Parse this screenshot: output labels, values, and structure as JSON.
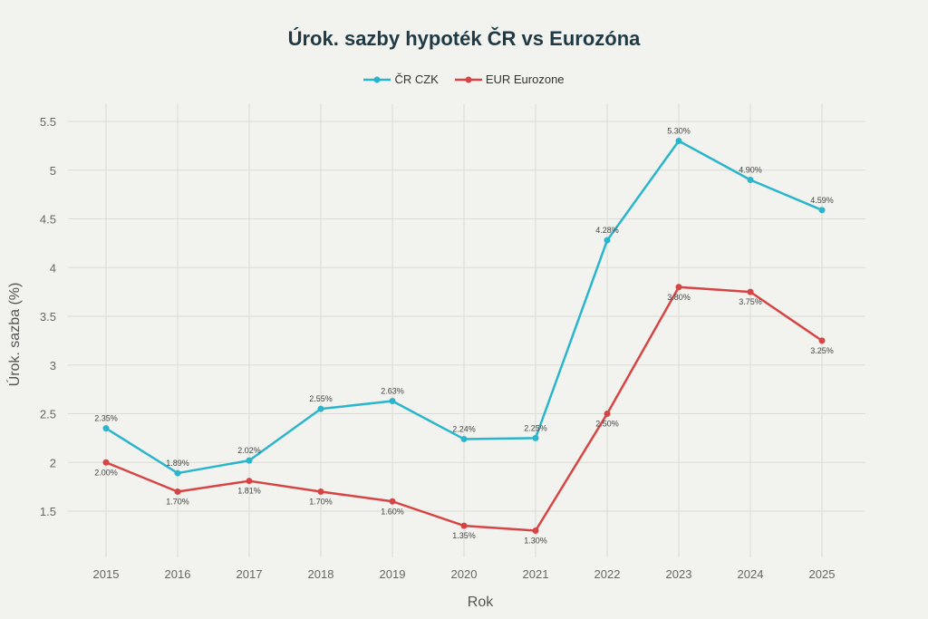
{
  "chart_data": {
    "type": "line",
    "title": "Úrok. sazby hypoték ČR vs Eurozóna",
    "xlabel": "Rok",
    "ylabel": "Úrok. sazba (%)",
    "x": [
      2015,
      2016,
      2017,
      2018,
      2019,
      2020,
      2021,
      2022,
      2023,
      2024,
      2025
    ],
    "x_tick_labels": [
      "2015",
      "2016",
      "2017",
      "2018",
      "2019",
      "2020",
      "2021",
      "2022",
      "2023",
      "2024",
      "2025"
    ],
    "y_ticks": [
      1.5,
      2,
      2.5,
      3,
      3.5,
      4,
      4.5,
      5,
      5.5
    ],
    "y_tick_labels": [
      "1.5",
      "2",
      "2.5",
      "3",
      "3.5",
      "4",
      "4.5",
      "5",
      "5.5"
    ],
    "ylim": [
      1.05,
      5.65
    ],
    "grid": true,
    "legend_position": "top-center",
    "series": [
      {
        "name": "ČR CZK",
        "color": "#2ab5cc",
        "values": [
          2.35,
          1.89,
          2.02,
          2.55,
          2.63,
          2.24,
          2.25,
          4.28,
          5.3,
          4.9,
          4.59
        ],
        "labels": [
          "2.35%",
          "1.89%",
          "2.02%",
          "2.55%",
          "2.63%",
          "2.24%",
          "2.25%",
          "4.28%",
          "5.30%",
          "4.90%",
          "4.59%"
        ],
        "label_position": "above"
      },
      {
        "name": "EUR Eurozone",
        "color": "#d64545",
        "values": [
          2.0,
          1.7,
          1.81,
          1.7,
          1.6,
          1.35,
          1.3,
          2.5,
          3.8,
          3.75,
          3.25
        ],
        "labels": [
          "2.00%",
          "1.70%",
          "1.81%",
          "1.70%",
          "1.60%",
          "1.35%",
          "1.30%",
          "2.50%",
          "3.80%",
          "3.75%",
          "3.25%"
        ],
        "label_position": "below"
      }
    ]
  }
}
